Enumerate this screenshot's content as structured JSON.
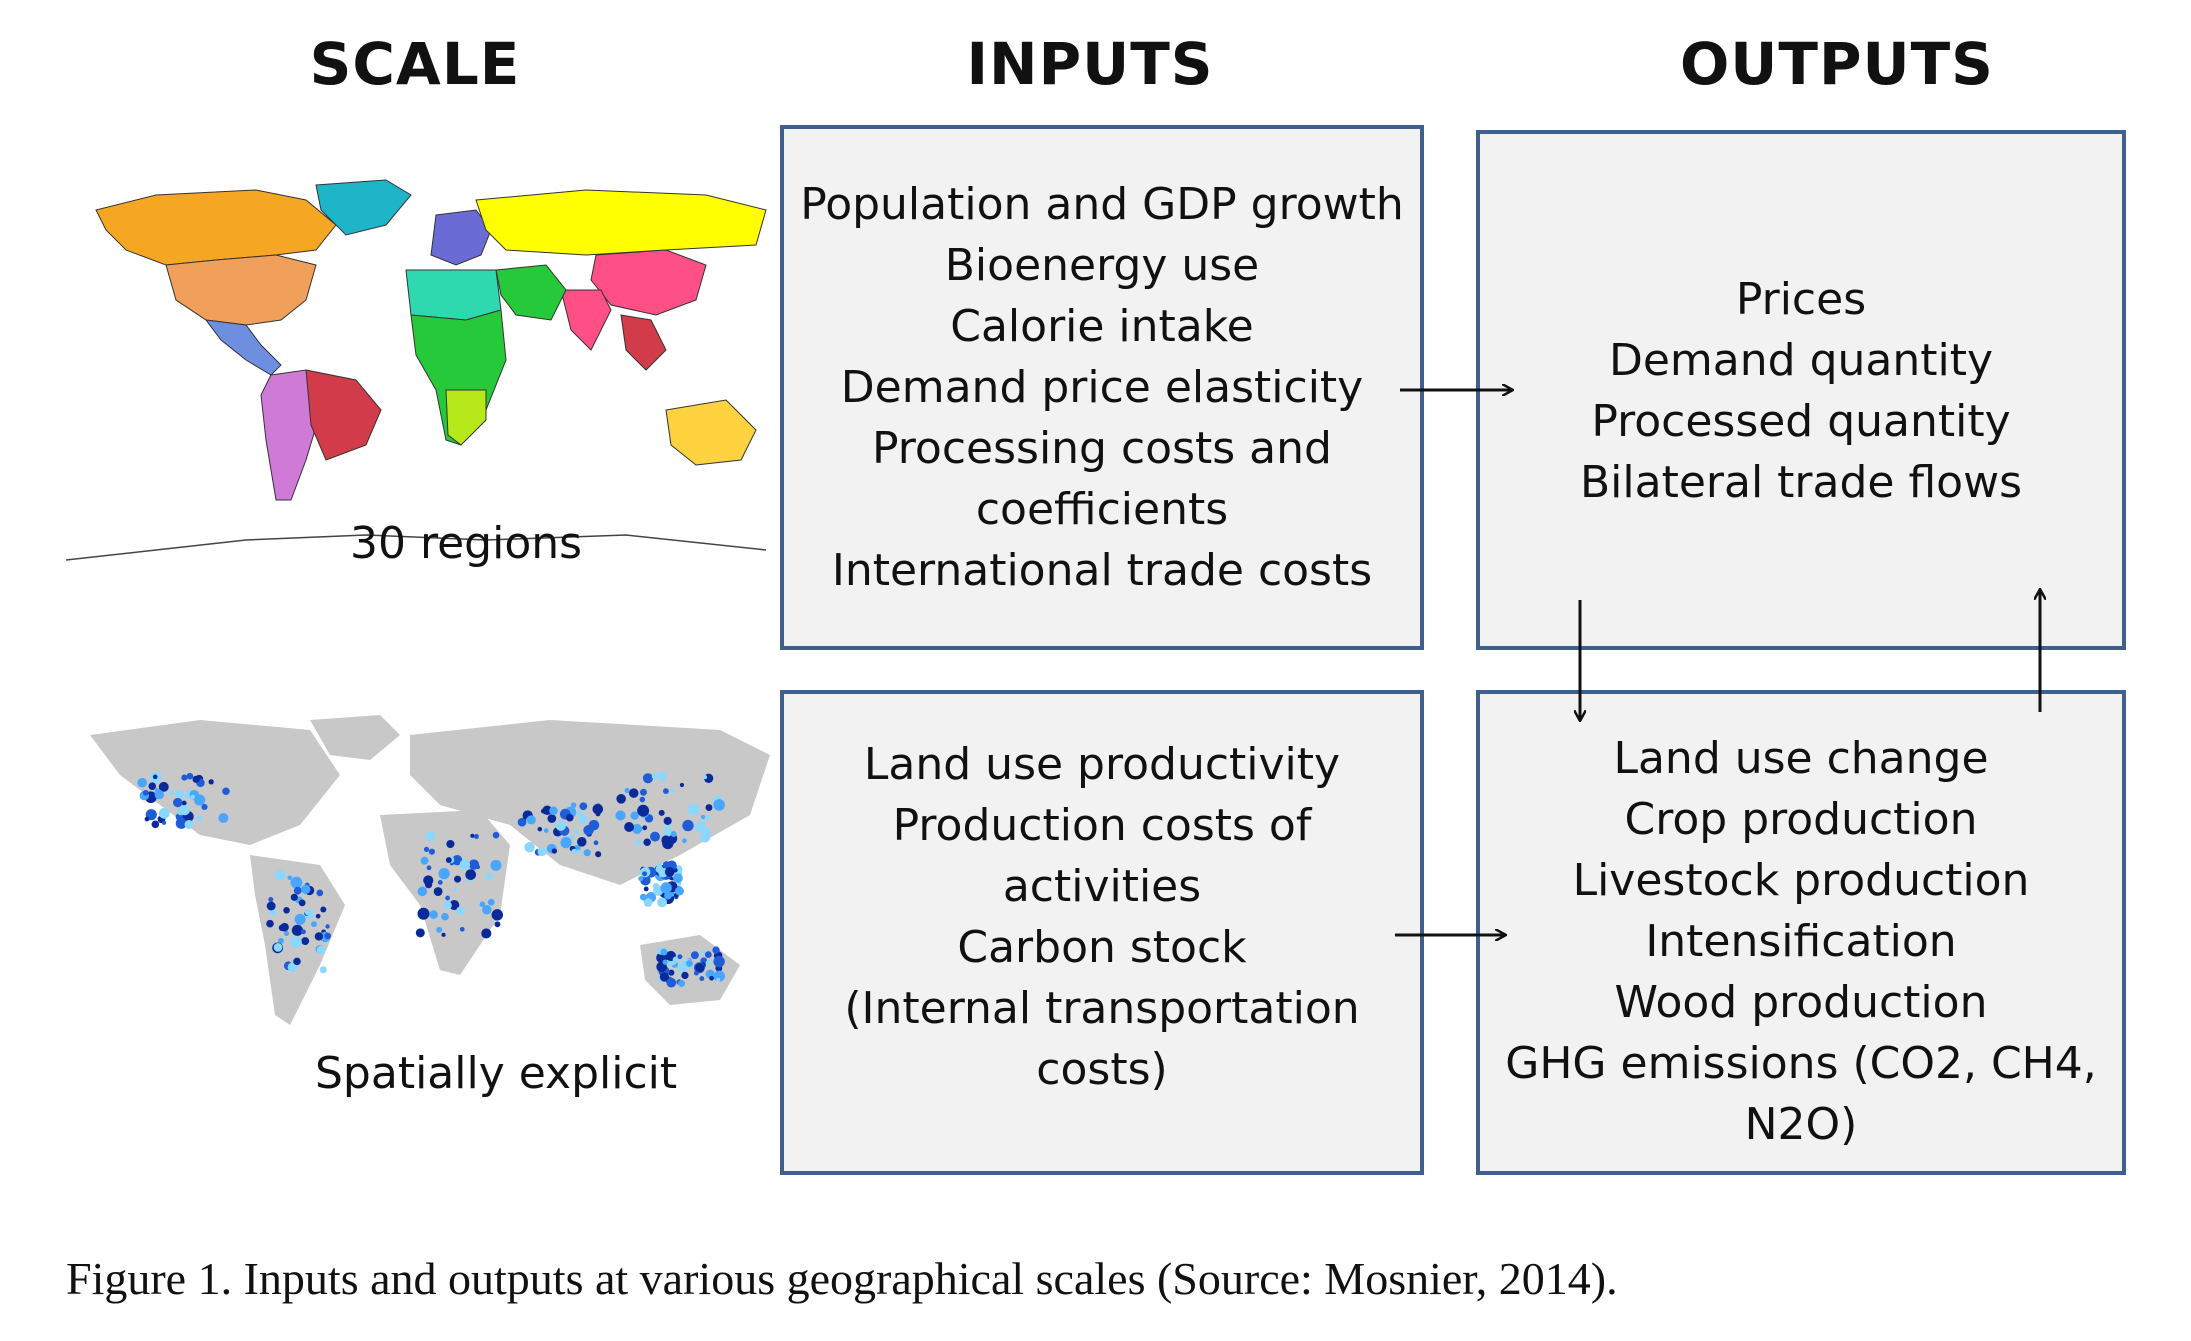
{
  "headers": {
    "scale": "SCALE",
    "inputs": "INPUTS",
    "outputs": "OUTPUTS"
  },
  "maps": {
    "regions_label": "30 regions",
    "spatial_label": "Spatially explicit",
    "region_colors": [
      "#f5a623",
      "#1fb5c8",
      "#f0a05a",
      "#6e8fe0",
      "#d07ad8",
      "#d23c4a",
      "#ffff00",
      "#ff4f87",
      "#2fd9b0",
      "#25c93a",
      "#b7e81a",
      "#6b6bd6",
      "#ffd23f"
    ],
    "land_gray": "#c8c8c8",
    "density_colors": [
      "#0a2a9a",
      "#1f5cd8",
      "#49a6ff",
      "#8ad7ff"
    ]
  },
  "inputs_top": [
    "Population and GDP growth",
    "Bioenergy use",
    "Calorie intake",
    "Demand price elasticity",
    "Processing costs and",
    "coefficients",
    "International trade costs"
  ],
  "inputs_bottom": [
    "Land use productivity",
    "Production costs of",
    "activities",
    "Carbon stock",
    "(Internal transportation",
    "costs)"
  ],
  "outputs_top": [
    "Prices",
    "Demand quantity",
    "Processed quantity",
    "Bilateral trade flows"
  ],
  "outputs_bottom": [
    "Land use change",
    "Crop production",
    "Livestock production",
    "Intensification",
    "Wood production",
    "GHG emissions (CO2, CH4,",
    "N2O)"
  ],
  "caption": "Figure 1. Inputs and outputs at various geographical scales (Source: Mosnier, 2014).",
  "colors": {
    "box_border": "#3f5f8f",
    "box_fill": "#f2f2f2"
  }
}
